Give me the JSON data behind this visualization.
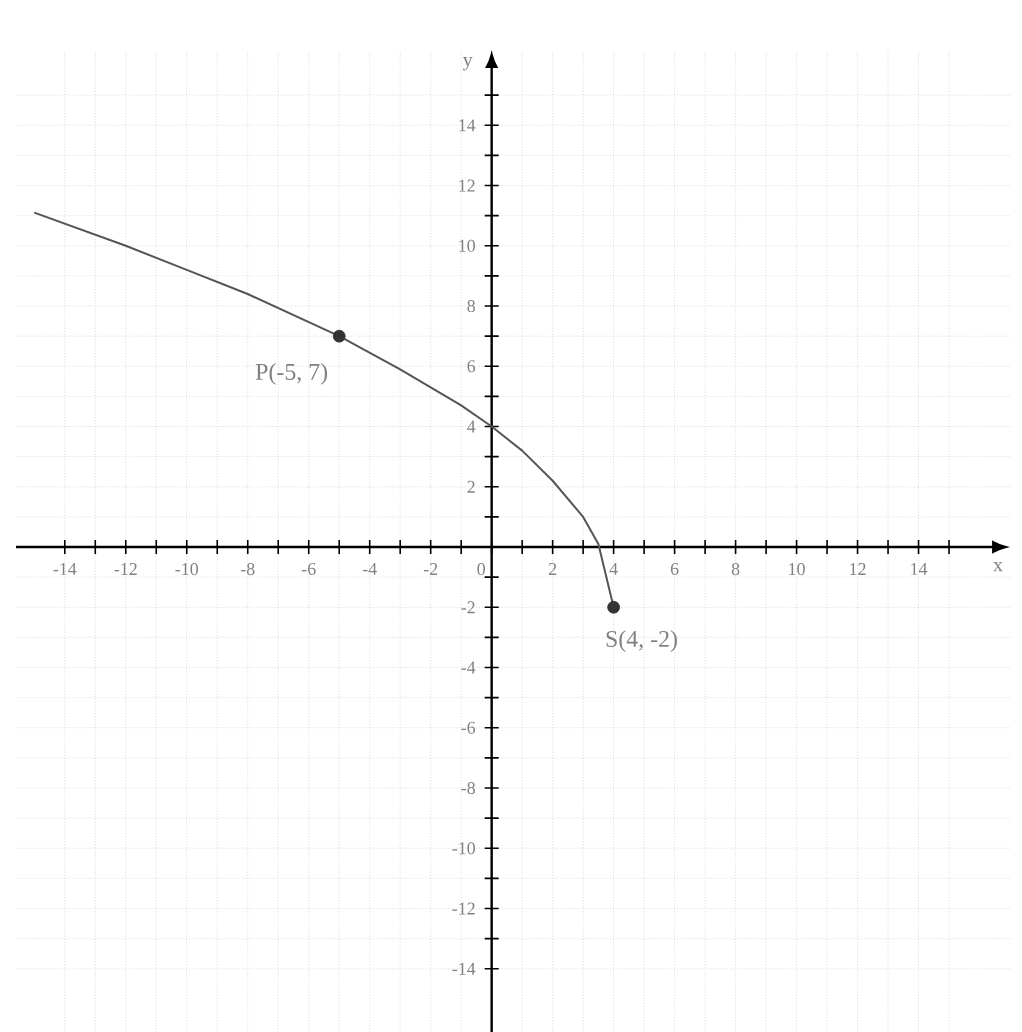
{
  "chart_data": {
    "type": "line",
    "xlabel": "x",
    "ylabel": "y",
    "xlim": [
      -15.6,
      17
    ],
    "ylim": [
      -16.1,
      16.5
    ],
    "xticks": [
      -14,
      {
        "value": -13,
        "label": null
      },
      -12,
      {
        "value": -11,
        "label": null
      },
      -10,
      {
        "value": -9,
        "label": null
      },
      -8,
      {
        "value": -7,
        "label": null
      },
      -6,
      {
        "value": -5,
        "label": null
      },
      -4,
      {
        "value": -3,
        "label": null
      },
      -2,
      {
        "value": -1,
        "label": null
      },
      0,
      {
        "value": 1,
        "label": null
      },
      2,
      {
        "value": 3,
        "label": null
      },
      4,
      {
        "value": 5,
        "label": null
      },
      6,
      {
        "value": 7,
        "label": null
      },
      8,
      {
        "value": 9,
        "label": null
      },
      10,
      {
        "value": 11,
        "label": null
      },
      12,
      {
        "value": 13,
        "label": null
      },
      14,
      {
        "value": 15,
        "label": null
      }
    ],
    "yticks": [
      -14,
      {
        "value": -13,
        "label": null
      },
      -12,
      {
        "value": -11,
        "label": null
      },
      -10,
      {
        "value": -9,
        "label": null
      },
      -8,
      {
        "value": -7,
        "label": null
      },
      -6,
      {
        "value": -5,
        "label": null
      },
      -4,
      {
        "value": -3,
        "label": null
      },
      -2,
      {
        "value": -1,
        "label": null
      },
      {
        "value": 1,
        "label": null
      },
      2,
      {
        "value": 3,
        "label": null
      },
      4,
      {
        "value": 5,
        "label": null
      },
      6,
      {
        "value": 7,
        "label": null
      },
      8,
      {
        "value": 9,
        "label": null
      },
      10,
      {
        "value": 11,
        "label": null
      },
      12,
      {
        "value": 13,
        "label": null
      },
      14,
      {
        "value": 15,
        "label": null
      }
    ],
    "grid": true,
    "series": [
      {
        "color": "#555555",
        "line_style": "solid",
        "x": [
          -15,
          -12,
          -10,
          -8,
          -5,
          -3,
          -1,
          0,
          1,
          2,
          3,
          3.5,
          4
        ],
        "values": [
          11.1,
          10,
          9.2,
          8.4,
          7,
          5.9,
          4.7,
          4,
          3.2,
          2.2,
          1,
          0.1,
          -2
        ]
      },
      {
        "type": "scatter",
        "marker": "circle",
        "color": "#333333",
        "x": [
          -5,
          4
        ],
        "values": [
          7,
          -2
        ]
      }
    ],
    "annotations": [
      {
        "text": "P(-5, 7)",
        "x": -5,
        "y": 7
      },
      {
        "text": "S(4, -2)",
        "x": 4,
        "y": -2
      }
    ]
  }
}
